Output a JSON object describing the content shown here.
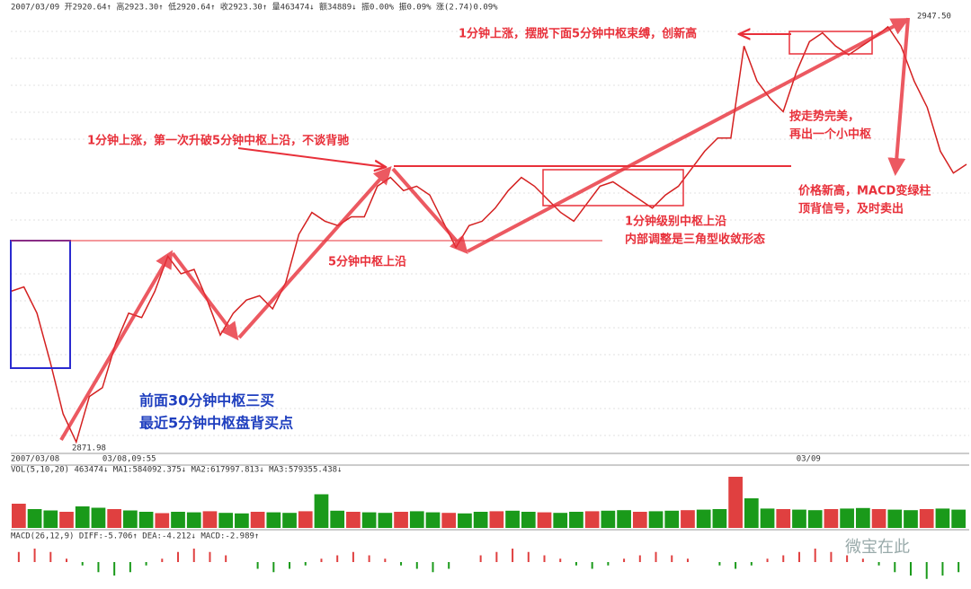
{
  "header": "2007/03/09 开2920.64↑ 高2923.30↑ 低2920.64↑ 收2923.30↑ 量463474↓ 额34889↓ 振0.00% 振0.09% 涨(2.74)0.09%",
  "annotations": [
    "1分钟上涨，摆脱下面5分钟中枢束缚，创新高",
    "1分钟上涨，第一次升破5分钟中枢上沿，不谈背驰",
    "5分钟中枢上沿",
    "1分钟级别中枢上沿",
    "内部调整是三角型收敛形态",
    "按走势完美，",
    "再出一个小中枢",
    "价格新高，MACD变绿柱",
    "顶背信号，及时卖出",
    "前面30分钟中枢三买",
    "最近5分钟中枢盘背买点"
  ],
  "high_label": "2947.50",
  "low_label": "2871.98",
  "watermark": "微宝在此",
  "chart_data": [
    {
      "type": "line",
      "color": "#d42020",
      "ylim": [
        2869.9,
        2950.4
      ],
      "categories": [
        "2007/03/08",
        null,
        null,
        null,
        null,
        null,
        null,
        "03/08,09:55",
        null,
        null,
        null,
        null,
        null,
        null,
        null,
        null,
        null,
        null,
        null,
        null,
        null,
        null,
        null,
        null,
        null,
        null,
        null,
        null,
        null,
        null,
        null,
        null,
        null,
        null,
        null,
        null,
        null,
        null,
        null,
        null,
        null,
        null,
        null,
        null,
        null,
        null,
        null,
        null,
        null,
        null,
        null,
        null,
        null,
        null,
        null,
        null,
        null,
        null,
        null,
        null,
        "03/09",
        null,
        null,
        null,
        null,
        null,
        null,
        null,
        null,
        null,
        null,
        null,
        null,
        null
      ],
      "values": [
        2899.38,
        2900.18,
        2895.4,
        2886.64,
        2877.08,
        2871.98,
        2880.26,
        2881.86,
        2889.82,
        2895.4,
        2894.6,
        2899.38,
        2905.75,
        2902.57,
        2903.36,
        2897.79,
        2891.42,
        2895.4,
        2897.79,
        2898.58,
        2896.19,
        2900.97,
        2909.74,
        2913.72,
        2912.13,
        2911.33,
        2912.92,
        2912.92,
        2918.5,
        2920.09,
        2917.7,
        2918.5,
        2916.9,
        2912.13,
        2907.35,
        2911.33,
        2912.13,
        2914.51,
        2917.7,
        2920.09,
        2918.5,
        2916.11,
        2913.72,
        2912.13,
        2915.31,
        2918.5,
        2919.29,
        2917.7,
        2916.11,
        2914.51,
        2916.9,
        2918.5,
        2921.68,
        2924.87,
        2927.26,
        2927.26,
        2943.99,
        2937.61,
        2934.43,
        2932.04,
        2939.21,
        2944.78,
        2946.38,
        2943.99,
        2942.39,
        2943.99,
        2945.58,
        2947.5,
        2943.99,
        2937.61,
        2932.83,
        2924.87,
        2920.89,
        2922.48
      ]
    },
    {
      "type": "bar",
      "title": "VOL(5,10,20) 463474↓ MA1:584092.375↓ MA2:617997.813↓ MA3:579355.438↓",
      "colors": [
        "#e04040",
        "#1a9a1a"
      ],
      "ylim": [
        0,
        2000000
      ],
      "values": [
        900000,
        700000,
        650000,
        600000,
        800000,
        750000,
        700000,
        650000,
        600000,
        550000,
        600000,
        580000,
        620000,
        560000,
        540000,
        600000,
        580000,
        560000,
        620000,
        1250000,
        640000,
        600000,
        580000,
        560000,
        600000,
        620000,
        580000,
        560000,
        540000,
        600000,
        620000,
        640000,
        600000,
        580000,
        560000,
        600000,
        620000,
        640000,
        660000,
        600000,
        620000,
        640000,
        660000,
        680000,
        700000,
        1900000,
        1100000,
        720000,
        700000,
        680000,
        660000,
        700000,
        720000,
        740000,
        700000,
        680000,
        660000,
        700000,
        720000,
        680000
      ]
    },
    {
      "type": "macd",
      "title": "MACD(26,12,9) DIFF:-5.706↑ DEA:-4.212↓ MACD:-2.989↑",
      "pos_color": "#e04040",
      "neg_color": "#1a9a1a",
      "ylim": [
        -8,
        8
      ],
      "values": [
        3,
        4,
        3,
        1,
        -1,
        -3,
        -4,
        -3,
        -1,
        1,
        3,
        4,
        3,
        2,
        0,
        -2,
        -3,
        -2,
        -1,
        1,
        2,
        3,
        2,
        1,
        -1,
        -2,
        -3,
        -2,
        0,
        2,
        3,
        4,
        3,
        2,
        1,
        -1,
        -2,
        -1,
        1,
        2,
        3,
        2,
        1,
        0,
        -1,
        -2,
        -1,
        1,
        2,
        3,
        4,
        3,
        2,
        1,
        -1,
        -3,
        -4,
        -5,
        -4,
        -3
      ]
    }
  ]
}
